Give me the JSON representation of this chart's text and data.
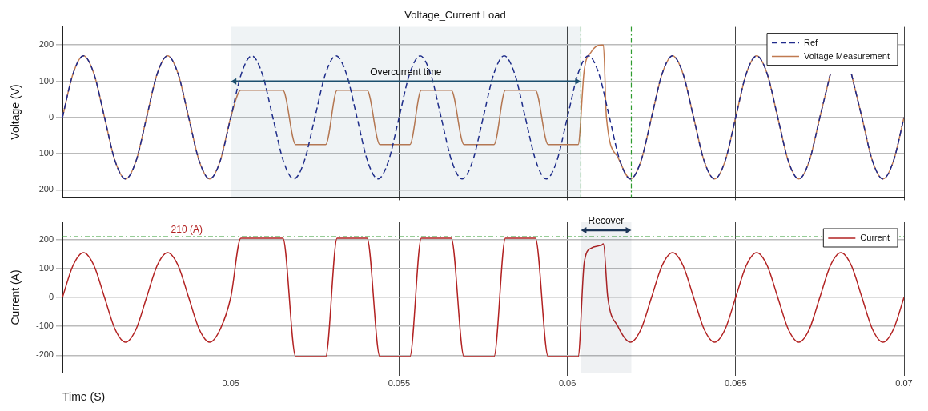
{
  "chart_data": [
    {
      "type": "line",
      "title": "Voltage_Current Load",
      "ylabel": "Voltage (V)",
      "xlim": [
        0.045,
        0.07
      ],
      "xticks": [
        0.05,
        0.055,
        0.06,
        0.065,
        0.07
      ],
      "ylim": [
        -220,
        250
      ],
      "yticks": [
        -200,
        -100,
        0,
        100,
        200
      ],
      "tick_labels": "y",
      "grid": true,
      "legend": "top right",
      "series": [
        {
          "name": "Ref",
          "color": "#1f2a8c",
          "line_style": "dashed",
          "x": [
            0.045,
            0.0453125,
            0.045625,
            0.0459375,
            0.04625,
            0.0465625,
            0.046875,
            0.0471875,
            0.0475,
            0.0478125,
            0.048125,
            0.0484375,
            0.04875,
            0.0490625,
            0.049375,
            0.0496875,
            0.05,
            0.0503125,
            0.050625,
            0.0509375,
            0.05125,
            0.0515625,
            0.051875,
            0.0521875,
            0.0525,
            0.0528125,
            0.053125,
            0.0534375,
            0.05375,
            0.0540625,
            0.054375,
            0.0546875,
            0.055,
            0.0553125,
            0.055625,
            0.0559375,
            0.05625,
            0.0565625,
            0.056875,
            0.0571875,
            0.0575,
            0.0578125,
            0.058125,
            0.0584375,
            0.05875,
            0.0590625,
            0.059375,
            0.0596875,
            0.06,
            0.0603125,
            0.060625,
            0.0609375,
            0.06125,
            0.0615625,
            0.061875,
            0.0621875,
            0.0625,
            0.0628125,
            0.063125,
            0.0634375,
            0.06375,
            0.0640625,
            0.064375,
            0.0646875,
            0.065,
            0.0653125,
            0.065625,
            0.0659375,
            0.06625,
            0.0665625,
            0.066875,
            0.0671875,
            0.0675,
            0.0678125,
            0.068125,
            0.0684375,
            0.06875,
            0.0690625,
            0.069375,
            0.0696875,
            0.07
          ],
          "values": [
            0,
            120,
            170,
            120,
            0,
            -120,
            -170,
            -120,
            0,
            120,
            170,
            120,
            0,
            -120,
            -170,
            -120,
            0,
            120,
            170,
            120,
            0,
            -120,
            -170,
            -120,
            0,
            120,
            170,
            120,
            0,
            -120,
            -170,
            -120,
            0,
            120,
            170,
            120,
            0,
            -120,
            -170,
            -120,
            0,
            120,
            170,
            120,
            0,
            -120,
            -170,
            -120,
            0,
            120,
            170,
            120,
            0,
            -120,
            -170,
            -120,
            0,
            120,
            170,
            120,
            0,
            -120,
            -170,
            -120,
            0,
            120,
            170,
            120,
            0,
            -120,
            -170,
            -120,
            0,
            120,
            null,
            120,
            0,
            -120,
            -170,
            -120,
            0
          ]
        },
        {
          "name": "Voltage Measurement",
          "color": "#c07a50",
          "line_style": "solid",
          "x": [
            0.045,
            0.0453125,
            0.045625,
            0.0459375,
            0.04625,
            0.0465625,
            0.046875,
            0.0471875,
            0.0475,
            0.0478125,
            0.048125,
            0.0484375,
            0.04875,
            0.0490625,
            0.049375,
            0.0496875,
            0.05,
            0.0503,
            0.05155,
            0.05193,
            0.05282,
            0.05316,
            0.05405,
            0.05443,
            0.05532,
            0.05566,
            0.05655,
            0.05693,
            0.05782,
            0.05816,
            0.05905,
            0.05943,
            0.06032,
            0.0605,
            0.0607,
            0.061,
            0.06107,
            0.06116,
            0.0615,
            0.061875,
            0.0621875,
            0.0625,
            0.0628125,
            0.063125,
            0.0634375,
            0.06375,
            0.0640625,
            0.064375,
            0.0646875,
            0.065,
            0.0653125,
            0.065625,
            0.0659375,
            0.06625,
            0.0665625,
            0.066875,
            0.0671875,
            0.0675,
            0.0678125,
            0.068125,
            0.0684375,
            0.06875,
            0.0690625,
            0.069375,
            0.0696875,
            0.07
          ],
          "values": [
            0,
            120,
            170,
            120,
            0,
            -120,
            -170,
            -120,
            0,
            120,
            170,
            120,
            0,
            -120,
            -170,
            -120,
            0,
            75,
            75,
            -75,
            -75,
            75,
            75,
            -75,
            -75,
            75,
            75,
            -75,
            -75,
            75,
            75,
            -75,
            -75,
            130,
            180,
            200,
            200,
            0,
            -110,
            -170,
            -120,
            0,
            120,
            170,
            120,
            0,
            -120,
            -170,
            -120,
            0,
            120,
            170,
            120,
            0,
            -120,
            -170,
            -120,
            0,
            120,
            null,
            120,
            0,
            -120,
            -170,
            -120,
            0
          ]
        }
      ],
      "ref_lines": [
        {
          "axis": "x",
          "value": 0.0604,
          "color": "#2e9b2e",
          "line_style": "dashed"
        },
        {
          "axis": "x",
          "value": 0.0619,
          "color": "#2e9b2e",
          "line_style": "dashed"
        }
      ],
      "bands": [
        {
          "axis": "x",
          "from": 0.05,
          "to": 0.0604,
          "label": "Overcurrent time",
          "color": "#1c4f6e"
        }
      ]
    },
    {
      "type": "line",
      "xlabel": "Time (S)",
      "ylabel": "Current (A)",
      "xlim": [
        0.045,
        0.07
      ],
      "xticks": [
        0.05,
        0.055,
        0.06,
        0.065,
        0.07
      ],
      "ylim": [
        -260,
        260
      ],
      "yticks": [
        -200,
        -100,
        0,
        100,
        200
      ],
      "grid": true,
      "legend": "top right",
      "series": [
        {
          "name": "Current",
          "color": "#b22222",
          "line_style": "solid",
          "x": [
            0.045,
            0.0453125,
            0.045625,
            0.0459375,
            0.04625,
            0.0465625,
            0.046875,
            0.0471875,
            0.0475,
            0.0478125,
            0.048125,
            0.0484375,
            0.04875,
            0.0490625,
            0.049375,
            0.0496875,
            0.05,
            0.0503,
            0.05155,
            0.05193,
            0.05282,
            0.05316,
            0.05405,
            0.05443,
            0.05532,
            0.05566,
            0.05655,
            0.05693,
            0.05782,
            0.05816,
            0.05905,
            0.05943,
            0.06032,
            0.0605,
            0.0607,
            0.061,
            0.06107,
            0.0612,
            0.0615,
            0.061875,
            0.0621875,
            0.0625,
            0.0628125,
            0.063125,
            0.0634375,
            0.06375,
            0.0640625,
            0.064375,
            0.0646875,
            0.065,
            0.0653125,
            0.065625,
            0.0659375,
            0.06625,
            0.0665625,
            0.066875,
            0.0671875,
            0.0675,
            0.0678125,
            0.068125,
            0.0684375,
            0.06875,
            0.0690625,
            0.069375,
            0.0696875,
            0.07
          ],
          "values": [
            0,
            110,
            155,
            110,
            0,
            -110,
            -155,
            -110,
            0,
            110,
            155,
            110,
            0,
            -110,
            -155,
            -110,
            0,
            205,
            205,
            -205,
            -205,
            205,
            205,
            -205,
            -205,
            205,
            205,
            -205,
            -205,
            205,
            205,
            -205,
            -205,
            120,
            170,
            180,
            185,
            0,
            -100,
            -155,
            -110,
            0,
            110,
            155,
            110,
            0,
            -110,
            -155,
            -110,
            0,
            110,
            155,
            110,
            0,
            -110,
            -155,
            -110,
            0,
            110,
            155,
            110,
            0,
            -110,
            -155,
            -110,
            0
          ]
        }
      ],
      "ref_lines": [
        {
          "axis": "y",
          "value": 210,
          "label": "210 (A)",
          "color": "#2e9b2e",
          "line_style": "dashed"
        }
      ],
      "bands": [
        {
          "axis": "x",
          "from": 0.0604,
          "to": 0.0619,
          "label": "Recover",
          "color": "#1c3557"
        }
      ]
    }
  ]
}
